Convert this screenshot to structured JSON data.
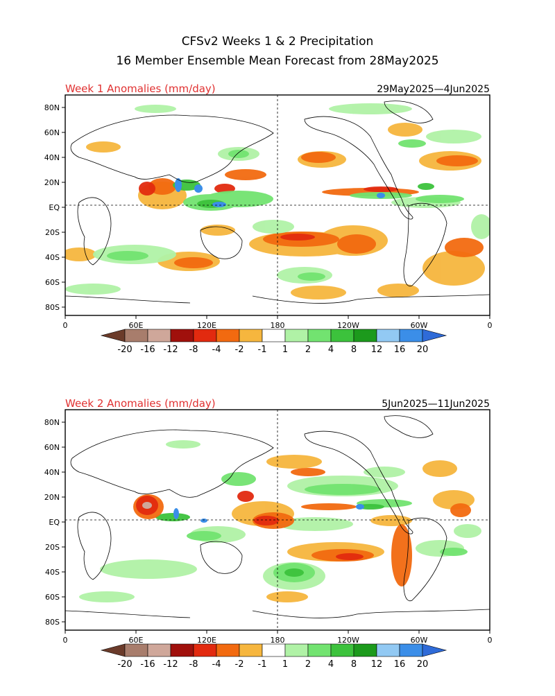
{
  "header": {
    "title_line1": "CFSv2 Weeks 1 & 2 Precipitation",
    "title_line2": "16 Member Ensemble Mean Forecast from 28May2025"
  },
  "panels": [
    {
      "label": "Week 1 Anomalies (mm/day)",
      "date_range": "29May2025—4Jun2025"
    },
    {
      "label": "Week 2 Anomalies (mm/day)",
      "date_range": "5Jun2025—11Jun2025"
    }
  ],
  "axes": {
    "lat_labels": [
      "80N",
      "60N",
      "40N",
      "20N",
      "EQ",
      "20S",
      "40S",
      "60S",
      "80S"
    ],
    "lon_labels": [
      "0",
      "60E",
      "120E",
      "180",
      "120W",
      "60W",
      "0"
    ]
  },
  "colorbar": {
    "labels": [
      "-20",
      "-16",
      "-12",
      "-8",
      "-4",
      "-2",
      "-1",
      "1",
      "2",
      "4",
      "8",
      "12",
      "16",
      "20"
    ],
    "colors": [
      "#6b3b2a",
      "#a87d6c",
      "#cfa79a",
      "#a0100c",
      "#e22a0f",
      "#f26a10",
      "#f6b63e",
      "#ffffff",
      "#b0f2a6",
      "#72e370",
      "#3cc23c",
      "#1c9a1c",
      "#92c9f3",
      "#3b8ee8",
      "#2f6bd8"
    ]
  },
  "colors": {
    "label_red": "#e03030"
  }
}
